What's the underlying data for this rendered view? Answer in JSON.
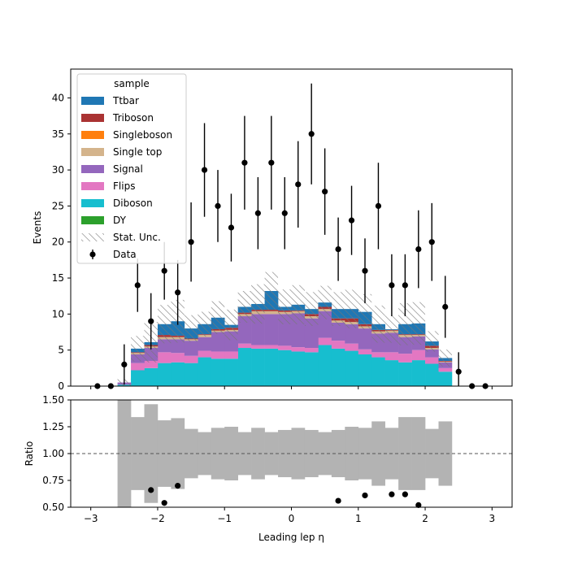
{
  "chart_data": [
    {
      "type": "bar",
      "subtype": "stacked-step-histogram-with-data-points",
      "xlabel": "",
      "ylabel": "Events",
      "xlim": [
        -3.3,
        3.3
      ],
      "ylim": [
        0,
        44
      ],
      "yticks": [
        0,
        5,
        10,
        15,
        20,
        25,
        30,
        35,
        40
      ],
      "bin_edges": [
        -2.6,
        -2.4,
        -2.2,
        -2.0,
        -1.8,
        -1.6,
        -1.4,
        -1.2,
        -1.0,
        -0.8,
        -0.6,
        -0.4,
        -0.2,
        0.0,
        0.2,
        0.4,
        0.6,
        0.8,
        1.0,
        1.2,
        1.4,
        1.6,
        1.8,
        2.0,
        2.2,
        2.4
      ],
      "series": [
        {
          "name": "Diboson",
          "color": "#17becf",
          "values": [
            0.2,
            2.2,
            2.5,
            3.2,
            3.3,
            3.2,
            4.0,
            3.8,
            3.8,
            5.3,
            5.2,
            5.2,
            5.0,
            4.8,
            4.7,
            5.7,
            5.2,
            4.9,
            4.4,
            4.0,
            3.6,
            3.3,
            3.6,
            3.1,
            2.0
          ]
        },
        {
          "name": "Flips",
          "color": "#e377c2",
          "values": [
            0.0,
            1.0,
            1.0,
            1.5,
            1.3,
            1.0,
            0.9,
            1.0,
            1.0,
            0.6,
            0.5,
            0.5,
            0.6,
            0.6,
            0.6,
            1.0,
            1.1,
            1.0,
            0.7,
            0.7,
            1.1,
            1.2,
            1.4,
            0.9,
            0.5
          ]
        },
        {
          "name": "Signal",
          "color": "#9467bd",
          "values": [
            0.3,
            1.2,
            1.8,
            1.8,
            1.9,
            2.1,
            1.9,
            2.7,
            2.8,
            3.8,
            4.3,
            4.3,
            4.4,
            4.7,
            4.1,
            3.7,
            2.5,
            2.7,
            2.9,
            2.6,
            2.7,
            2.3,
            1.9,
            1.1,
            0.8
          ]
        },
        {
          "name": "Single top",
          "color": "#d4b48c",
          "values": [
            0.0,
            0.2,
            0.2,
            0.3,
            0.3,
            0.2,
            0.3,
            0.2,
            0.2,
            0.3,
            0.4,
            0.4,
            0.3,
            0.3,
            0.3,
            0.3,
            0.3,
            0.3,
            0.3,
            0.3,
            0.3,
            0.3,
            0.2,
            0.2,
            0.1
          ]
        },
        {
          "name": "Singleboson",
          "color": "#ff7f0e",
          "values": [
            0.0,
            0.0,
            0.0,
            0.0,
            0.0,
            0.0,
            0.0,
            0.0,
            0.0,
            0.0,
            0.0,
            0.0,
            0.0,
            0.0,
            0.0,
            0.0,
            0.0,
            0.0,
            0.0,
            0.0,
            0.0,
            0.0,
            0.0,
            0.0,
            0.0
          ]
        },
        {
          "name": "Triboson",
          "color": "#aa3333",
          "values": [
            0.0,
            0.1,
            0.2,
            0.3,
            0.2,
            0.1,
            0.1,
            0.2,
            0.3,
            0.2,
            0.2,
            0.2,
            0.2,
            0.1,
            0.3,
            0.3,
            0.3,
            0.5,
            0.3,
            0.2,
            0.1,
            0.1,
            0.1,
            0.3,
            0.1
          ]
        },
        {
          "name": "Ttbar",
          "color": "#1f77b4",
          "values": [
            0.0,
            0.5,
            0.4,
            1.5,
            2.0,
            1.4,
            1.4,
            1.6,
            0.4,
            0.8,
            0.8,
            2.6,
            0.5,
            0.8,
            0.7,
            0.6,
            1.3,
            1.3,
            1.7,
            0.8,
            0.1,
            1.4,
            1.5,
            0.6,
            0.4
          ]
        },
        {
          "name": "DY",
          "color": "#2ca02c",
          "values": [
            0,
            0,
            0,
            0,
            0,
            0,
            0,
            0,
            0,
            0,
            0,
            0,
            0,
            0,
            0,
            0,
            0,
            0,
            0,
            0,
            0,
            0,
            0,
            0,
            0
          ]
        }
      ],
      "stat_unc_frac": [
        1.0,
        0.34,
        0.46,
        0.31,
        0.33,
        0.23,
        0.2,
        0.24,
        0.25,
        0.2,
        0.24,
        0.2,
        0.22,
        0.24,
        0.22,
        0.2,
        0.22,
        0.25,
        0.24,
        0.3,
        0.24,
        0.34,
        0.34,
        0.23,
        0.3
      ],
      "data": {
        "name": "Data",
        "x": [
          -2.9,
          -2.7,
          -2.5,
          -2.3,
          -2.1,
          -1.9,
          -1.7,
          -1.5,
          -1.3,
          -1.1,
          -0.9,
          -0.7,
          -0.5,
          -0.3,
          -0.1,
          0.1,
          0.3,
          0.5,
          0.7,
          0.9,
          1.1,
          1.3,
          1.5,
          1.7,
          1.9,
          2.1,
          2.3,
          2.5,
          2.7,
          2.9
        ],
        "y": [
          0,
          0,
          3,
          14,
          9,
          16,
          13,
          20,
          30,
          25,
          22,
          31,
          24,
          31,
          24,
          28,
          35,
          27,
          19,
          23,
          16,
          25,
          14,
          14,
          19,
          20,
          11,
          2,
          0,
          0
        ],
        "yerr": [
          0,
          0,
          2.8,
          3.7,
          3.9,
          4.0,
          4.5,
          5.5,
          6.5,
          5.0,
          4.7,
          6.5,
          5.0,
          6.5,
          5.0,
          6.0,
          7.0,
          6.0,
          4.4,
          4.8,
          4.5,
          6.0,
          4.3,
          4.3,
          5.4,
          5.4,
          4.3,
          2.7,
          0,
          0
        ]
      },
      "legend": {
        "title": "sample",
        "placement": "upper-left",
        "entries": [
          "Ttbar",
          "Triboson",
          "Singleboson",
          "Single top",
          "Signal",
          "Flips",
          "Diboson",
          "DY",
          "Stat. Unc.",
          "Data"
        ]
      },
      "grid": false
    },
    {
      "type": "scatter",
      "subtype": "ratio-panel",
      "xlabel": "Leading lep η",
      "ylabel": "Ratio",
      "xlim": [
        -3.3,
        3.3
      ],
      "ylim": [
        0.5,
        1.5
      ],
      "xticks": [
        -3,
        -2,
        -1,
        0,
        1,
        2,
        3
      ],
      "yticks": [
        0.5,
        0.75,
        1.0,
        1.25,
        1.5
      ],
      "ytick_labels": [
        "0.50",
        "0.75",
        "1.00",
        "1.25",
        "1.50"
      ],
      "reference_line": 1.0,
      "points": {
        "x": [
          -2.1,
          -1.9,
          -1.7,
          0.7,
          1.1,
          1.5,
          1.7,
          1.9
        ],
        "y": [
          0.66,
          0.54,
          0.7,
          0.56,
          0.61,
          0.62,
          0.62,
          0.52
        ]
      },
      "grid": false
    }
  ]
}
